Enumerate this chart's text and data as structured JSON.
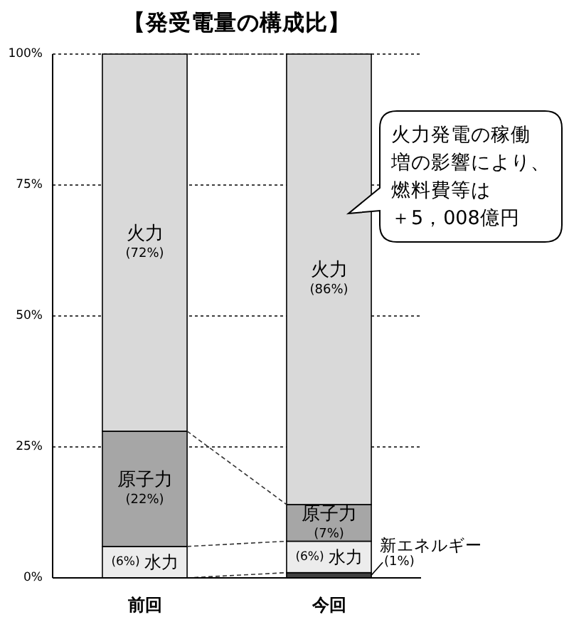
{
  "chart_data": {
    "type": "bar",
    "title": "【発受電量の構成比】",
    "categories": [
      "前回",
      "今回"
    ],
    "stacked": true,
    "series": [
      {
        "name": "新エネルギー",
        "color": "#404040",
        "values": [
          null,
          1
        ],
        "value_labels": [
          null,
          "(1%)"
        ]
      },
      {
        "name": "水力",
        "color": "#ececec",
        "values": [
          6,
          6
        ],
        "value_labels": [
          "(6%)",
          "(6%)"
        ]
      },
      {
        "name": "原子力",
        "color": "#a6a6a6",
        "values": [
          22,
          7
        ],
        "value_labels": [
          "(22%)",
          "(7%)"
        ]
      },
      {
        "name": "火力",
        "color": "#d9d9d9",
        "values": [
          72,
          86
        ],
        "value_labels": [
          "(72%)",
          "(86%)"
        ]
      }
    ],
    "ylim": [
      0,
      100
    ],
    "yticks": [
      {
        "value": 0,
        "label": "0%"
      },
      {
        "value": 25,
        "label": "25%"
      },
      {
        "value": 50,
        "label": "50%"
      },
      {
        "value": 75,
        "label": "75%"
      },
      {
        "value": 100,
        "label": "100%"
      }
    ],
    "grid": "y",
    "annotations": [
      "火力発電の稼働増の影響により、燃料費等は＋5，008億円"
    ]
  }
}
